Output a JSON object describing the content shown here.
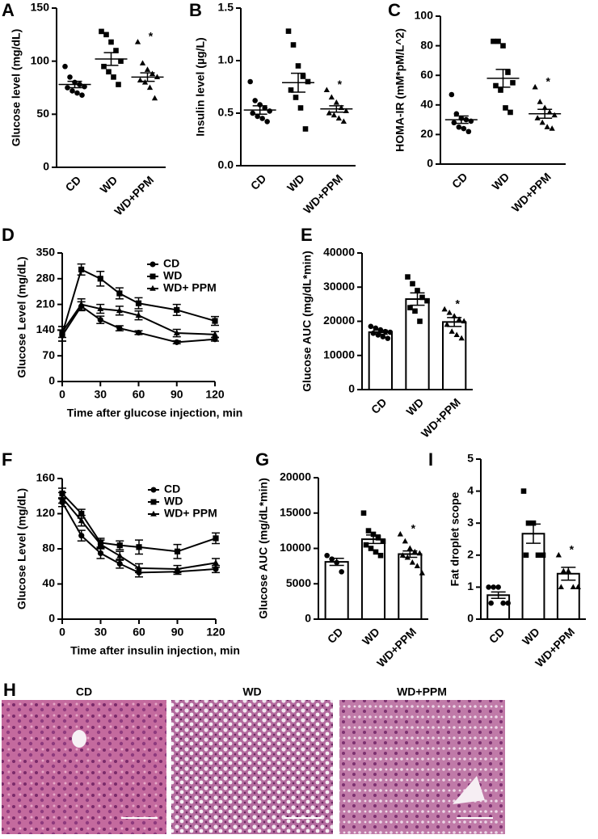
{
  "chart_data": [
    {
      "type": "dotplot",
      "panel": "A",
      "ylabel": "Glucose level (mg/dL)",
      "categories": [
        "CD",
        "WD",
        "WD+PPM"
      ],
      "markers": [
        "circle",
        "square",
        "triangle"
      ],
      "color": "#000000",
      "points": [
        [
          95,
          85,
          80,
          78,
          76,
          75,
          72,
          70,
          68
        ],
        [
          128,
          125,
          118,
          110,
          100,
          95,
          90,
          85,
          78
        ],
        [
          118,
          98,
          92,
          88,
          85,
          82,
          80,
          75,
          65
        ]
      ],
      "means": [
        78,
        102,
        85
      ],
      "sems": [
        3,
        6,
        4
      ],
      "ylim": [
        0,
        150
      ],
      "yticks": [
        0,
        50,
        100,
        150
      ],
      "annotations": [
        {
          "text": "*",
          "category": "WD+PPM"
        }
      ]
    },
    {
      "type": "dotplot",
      "panel": "B",
      "ylabel": "Insulin level (µg/L)",
      "categories": [
        "CD",
        "WD",
        "WD+PPM"
      ],
      "markers": [
        "circle",
        "square",
        "triangle"
      ],
      "color": "#000000",
      "points": [
        [
          0.8,
          0.62,
          0.58,
          0.55,
          0.52,
          0.5,
          0.47,
          0.45,
          0.42
        ],
        [
          1.28,
          1.15,
          0.95,
          0.85,
          0.8,
          0.72,
          0.65,
          0.55,
          0.35
        ],
        [
          0.72,
          0.65,
          0.6,
          0.55,
          0.52,
          0.5,
          0.48,
          0.45,
          0.42
        ]
      ],
      "means": [
        0.53,
        0.79,
        0.54
      ],
      "sems": [
        0.04,
        0.09,
        0.03
      ],
      "ylim": [
        0,
        1.5
      ],
      "yticks": [
        {
          "value": 0,
          "label": "0.0"
        },
        0.5,
        {
          "value": 1,
          "label": "1.0"
        },
        1.5
      ],
      "annotations": [
        {
          "text": "*",
          "category": "WD+PPM"
        }
      ]
    },
    {
      "type": "dotplot",
      "panel": "C",
      "ylabel": "HOMA-IR (mM*pM/L^2)",
      "categories": [
        "CD",
        "WD",
        "WD+PPM"
      ],
      "markers": [
        "circle",
        "square",
        "triangle"
      ],
      "color": "#000000",
      "points": [
        [
          47,
          34,
          31,
          30,
          29,
          28,
          25,
          24,
          22
        ],
        [
          83,
          83,
          80,
          62,
          55,
          53,
          50,
          38,
          35
        ],
        [
          52,
          42,
          38,
          35,
          33,
          31,
          28,
          25,
          24
        ]
      ],
      "means": [
        30,
        58,
        34
      ],
      "sems": [
        2.5,
        6,
        3
      ],
      "ylim": [
        0,
        100
      ],
      "yticks": [
        0,
        20,
        40,
        60,
        80,
        100
      ],
      "annotations": [
        {
          "text": "*",
          "category": "WD+PPM"
        }
      ]
    },
    {
      "type": "line",
      "panel": "D",
      "ylabel": "Glucose Level (mg/dL)",
      "xlabel": "Time after glucose injection, min",
      "x": [
        0,
        15,
        30,
        45,
        60,
        90,
        120
      ],
      "series": [
        {
          "name": "CD",
          "marker": "circle",
          "color": "#000000",
          "values": [
            125,
            205,
            168,
            145,
            133,
            107,
            115
          ],
          "errors": [
            15,
            12,
            10,
            7,
            5,
            4,
            5
          ]
        },
        {
          "name": "WD",
          "marker": "square",
          "color": "#000000",
          "values": [
            130,
            305,
            280,
            240,
            213,
            195,
            165
          ],
          "errors": [
            20,
            15,
            20,
            15,
            15,
            15,
            12
          ]
        },
        {
          "name": "WD+ PPM",
          "marker": "triangle",
          "color": "#000000",
          "values": [
            135,
            210,
            198,
            193,
            180,
            132,
            128
          ],
          "errors": [
            15,
            15,
            12,
            12,
            12,
            10,
            8
          ]
        }
      ],
      "xlim": [
        0,
        120
      ],
      "xticks": [
        0,
        30,
        60,
        90,
        120
      ],
      "ylim": [
        0,
        350
      ],
      "yticks": [
        0,
        70,
        140,
        210,
        280,
        350
      ],
      "legend": "upper right"
    },
    {
      "type": "bar",
      "panel": "E",
      "ylabel": "Glucose AUC (mg/dL*min)",
      "categories": [
        "CD",
        "WD",
        "WD+PPM"
      ],
      "markers": [
        "circle",
        "square",
        "triangle"
      ],
      "color": "#000000",
      "points": [
        [
          18500,
          18000,
          17500,
          17000,
          16800,
          16500,
          16000,
          15500,
          15000
        ],
        [
          33000,
          31000,
          29000,
          27000,
          26000,
          24000,
          23000,
          20000
        ],
        [
          23500,
          22500,
          21500,
          20500,
          20000,
          19000,
          17000,
          16000,
          15000
        ]
      ],
      "means": [
        16800,
        26500,
        19800
      ],
      "sems": [
        600,
        1800,
        1300
      ],
      "ylim": [
        0,
        40000
      ],
      "yticks": [
        0,
        10000,
        20000,
        30000,
        40000
      ],
      "annotations": [
        {
          "text": "*",
          "category": "WD+PPM"
        }
      ]
    },
    {
      "type": "line",
      "panel": "F",
      "ylabel": "Glucose Level (mg/dL)",
      "xlabel": "Time after insulin injection, min",
      "x": [
        0,
        15,
        30,
        45,
        60,
        90,
        120
      ],
      "series": [
        {
          "name": "CD",
          "marker": "circle",
          "color": "#000000",
          "values": [
            133,
            95,
            75,
            63,
            53,
            54,
            57
          ],
          "errors": [
            5,
            6,
            6,
            5,
            5,
            3,
            4
          ]
        },
        {
          "name": "WD",
          "marker": "square",
          "color": "#000000",
          "values": [
            143,
            120,
            87,
            84,
            82,
            77,
            92
          ],
          "errors": [
            6,
            5,
            5,
            5,
            8,
            8,
            6
          ]
        },
        {
          "name": "WD+ PPM",
          "marker": "triangle",
          "color": "#000000",
          "values": [
            138,
            112,
            85,
            72,
            58,
            57,
            64
          ],
          "errors": [
            6,
            6,
            5,
            5,
            5,
            4,
            5
          ]
        }
      ],
      "xlim": [
        0,
        120
      ],
      "xticks": [
        0,
        30,
        60,
        90,
        120
      ],
      "ylim": [
        0,
        160
      ],
      "yticks": [
        0,
        40,
        80,
        120,
        160
      ],
      "legend": "upper right"
    },
    {
      "type": "bar",
      "panel": "G",
      "ylabel": "Glucose AUC (mg/dL*min)",
      "categories": [
        "CD",
        "WD",
        "WD+PPM"
      ],
      "markers": [
        "circle",
        "square",
        "triangle"
      ],
      "color": "#000000",
      "points": [
        [
          9000,
          8500,
          8000,
          6700
        ],
        [
          15000,
          12500,
          12000,
          11500,
          11000,
          10500,
          10000,
          9500,
          9000
        ],
        [
          12000,
          11000,
          10000,
          9500,
          9300,
          9000,
          8700,
          8000,
          7500,
          6500
        ]
      ],
      "means": [
        8100,
        11300,
        9200
      ],
      "sems": [
        500,
        600,
        450
      ],
      "ylim": [
        0,
        20000
      ],
      "yticks": [
        0,
        5000,
        10000,
        15000,
        20000
      ],
      "annotations": [
        {
          "text": "*",
          "category": "WD+PPM"
        }
      ]
    },
    {
      "type": "bar",
      "panel": "I",
      "ylabel": "Fat droplet scope",
      "categories": [
        "CD",
        "WD",
        "WD+PPM"
      ],
      "markers": [
        "circle",
        "square",
        "triangle"
      ],
      "color": "#000000",
      "points": [
        [
          1,
          1,
          1,
          0.5,
          0.5,
          0.5
        ],
        [
          4,
          3,
          3,
          2,
          2,
          2
        ],
        [
          2,
          1.5,
          1.5,
          1,
          1,
          1
        ]
      ],
      "means": [
        0.75,
        2.67,
        1.42
      ],
      "sems": [
        0.1,
        0.3,
        0.2
      ],
      "ylim": [
        0,
        5
      ],
      "yticks": [
        0,
        1,
        2,
        3,
        4,
        5
      ],
      "annotations": [
        {
          "text": "*",
          "category": "WD+PPM"
        }
      ]
    }
  ],
  "histology": {
    "panel": "H",
    "captions": [
      "CD",
      "WD",
      "WD+PPM"
    ]
  }
}
